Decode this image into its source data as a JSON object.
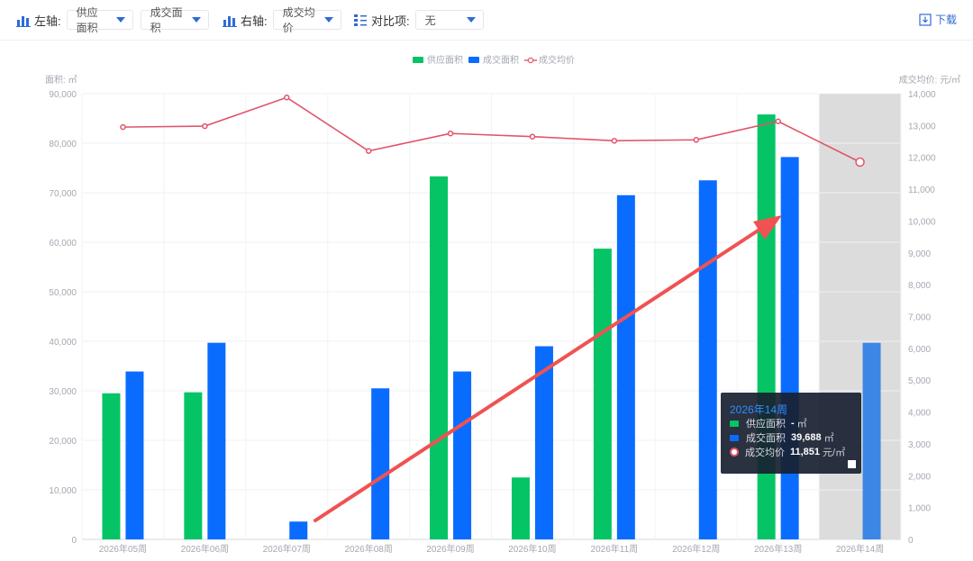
{
  "toolbar": {
    "left_axis_label": "左轴:",
    "left_select_1": "供应面积",
    "left_select_2": "成交面积",
    "right_axis_label": "右轴:",
    "right_select": "成交均价",
    "compare_label": "对比项:",
    "compare_select": "无",
    "download_label": "下载"
  },
  "tooltip": {
    "title": "2026年14周",
    "rows": [
      {
        "name": "供应面积",
        "value": "-",
        "unit": "㎡"
      },
      {
        "name": "成交面积",
        "value": "39,688",
        "unit": "㎡"
      },
      {
        "name": "成交均价",
        "value": "11,851",
        "unit": "元/㎡"
      }
    ]
  },
  "colors": {
    "supply": "#05c466",
    "deal": "#0a6cff",
    "price": "#e0556a",
    "highlight": "#dcdcdc",
    "accent": "#2f6bd6"
  },
  "chart_data": {
    "type": "bar",
    "categories": [
      "2026年05周",
      "2026年06周",
      "2026年07周",
      "2026年08周",
      "2026年09周",
      "2026年10周",
      "2026年11周",
      "2026年12周",
      "2026年13周",
      "2026年14周"
    ],
    "series": [
      {
        "name": "供应面积",
        "axis": "left",
        "type": "bar",
        "values": [
          29500,
          29700,
          null,
          null,
          73300,
          12500,
          58700,
          null,
          85800,
          null
        ]
      },
      {
        "name": "成交面积",
        "axis": "left",
        "type": "bar",
        "values": [
          33900,
          39700,
          3600,
          30500,
          33900,
          39000,
          69500,
          72500,
          77200,
          39688
        ]
      },
      {
        "name": "成交均价",
        "axis": "right",
        "type": "line",
        "values": [
          12950,
          12980,
          13880,
          12200,
          12750,
          12650,
          12520,
          12550,
          13130,
          11851
        ]
      }
    ],
    "ylabel_left": "面积: ㎡",
    "ylabel_right": "成交均价: 元/㎡",
    "ylim_left": [
      0,
      90000
    ],
    "ylim_right": [
      0,
      14000
    ],
    "yticks_left": [
      "0",
      "10,000",
      "20,000",
      "30,000",
      "40,000",
      "50,000",
      "60,000",
      "70,000",
      "80,000",
      "90,000"
    ],
    "yticks_right": [
      "0",
      "1,000",
      "2,000",
      "3,000",
      "4,000",
      "5,000",
      "6,000",
      "7,000",
      "8,000",
      "9,000",
      "10,000",
      "11,000",
      "12,000",
      "13,000",
      "14,000"
    ],
    "highlighted_category": "2026年14周",
    "legend_position": "top-center",
    "annotation": "red arrow from 2026年07周 rising to 2026年13周"
  }
}
